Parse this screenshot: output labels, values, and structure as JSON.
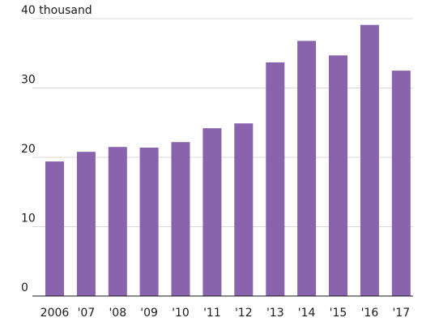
{
  "chart_data": {
    "type": "bar",
    "title": "",
    "xlabel": "",
    "ylabel": "",
    "categories": [
      "2006",
      "'07",
      "'08",
      "'09",
      "'10",
      "'11",
      "'12",
      "'13",
      "'14",
      "'15",
      "'16",
      "'17"
    ],
    "values": [
      19.4,
      20.8,
      21.5,
      21.4,
      22.2,
      24.2,
      24.9,
      33.7,
      36.8,
      34.7,
      39.1,
      32.5
    ],
    "ylim": [
      0,
      40
    ],
    "yticks": [
      0,
      10,
      20,
      30,
      40
    ],
    "ytick_labels": [
      "0",
      "10",
      "20",
      "30",
      "40 thousand"
    ],
    "grid": true,
    "bar_color": "#8a63ad",
    "grid_color": "#d9d9d9",
    "axis_color": "#1a1a1a"
  }
}
